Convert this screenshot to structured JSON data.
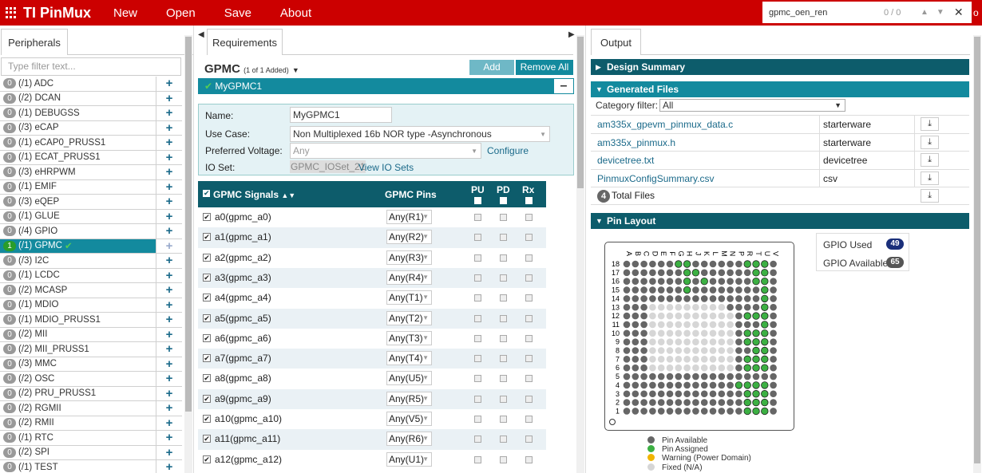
{
  "app": {
    "title": "TI PinMux",
    "menu": [
      "New",
      "Open",
      "Save",
      "About"
    ],
    "find_text": "gpmc_oen_ren",
    "find_count": "0 / 0",
    "cut_text": "o"
  },
  "left": {
    "tab": "Peripherals",
    "filter_placeholder": "Type filter text...",
    "items": [
      {
        "count": "0",
        "label": "(/1) ADC"
      },
      {
        "count": "0",
        "label": "(/2) DCAN"
      },
      {
        "count": "0",
        "label": "(/1) DEBUGSS"
      },
      {
        "count": "0",
        "label": "(/3) eCAP"
      },
      {
        "count": "0",
        "label": "(/1) eCAP0_PRUSS1"
      },
      {
        "count": "0",
        "label": "(/1) ECAT_PRUSS1"
      },
      {
        "count": "0",
        "label": "(/3) eHRPWM"
      },
      {
        "count": "0",
        "label": "(/1) EMIF"
      },
      {
        "count": "0",
        "label": "(/3) eQEP"
      },
      {
        "count": "0",
        "label": "(/1) GLUE"
      },
      {
        "count": "0",
        "label": "(/4) GPIO"
      },
      {
        "count": "1",
        "label": "(/1) GPMC",
        "active": true
      },
      {
        "count": "0",
        "label": "(/3) I2C"
      },
      {
        "count": "0",
        "label": "(/1) LCDC"
      },
      {
        "count": "0",
        "label": "(/2) MCASP"
      },
      {
        "count": "0",
        "label": "(/1) MDIO"
      },
      {
        "count": "0",
        "label": "(/1) MDIO_PRUSS1"
      },
      {
        "count": "0",
        "label": "(/2) MII"
      },
      {
        "count": "0",
        "label": "(/2) MII_PRUSS1"
      },
      {
        "count": "0",
        "label": "(/3) MMC"
      },
      {
        "count": "0",
        "label": "(/2) OSC"
      },
      {
        "count": "0",
        "label": "(/2) PRU_PRUSS1"
      },
      {
        "count": "0",
        "label": "(/2) RGMII"
      },
      {
        "count": "0",
        "label": "(/2) RMII"
      },
      {
        "count": "0",
        "label": "(/1) RTC"
      },
      {
        "count": "0",
        "label": "(/2) SPI"
      },
      {
        "count": "0",
        "label": "(/1) TEST"
      }
    ]
  },
  "mid": {
    "tab": "Requirements",
    "title": "GPMC",
    "subtitle": "(1 of 1 Added)",
    "add": "Add",
    "remove_all": "Remove All",
    "instance": "MyGPMC1",
    "name_label": "Name:",
    "name_value": "MyGPMC1",
    "usecase_label": "Use Case:",
    "usecase_value": "Non Multiplexed 16b NOR type -Asynchronous",
    "voltage_label": "Preferred Voltage:",
    "voltage_value": "Any",
    "configure": "Configure",
    "ioset_label": "IO Set:",
    "ioset_value": "GPMC_IOSet_21",
    "view_ioset": "View IO Sets",
    "col_signals": "GPMC Signals",
    "col_pins": "GPMC Pins",
    "col_pu": "PU",
    "col_pd": "PD",
    "col_rx": "Rx",
    "signals": [
      {
        "name": "a0(gpmc_a0)",
        "pin": "Any(R1)"
      },
      {
        "name": "a1(gpmc_a1)",
        "pin": "Any(R2)"
      },
      {
        "name": "a2(gpmc_a2)",
        "pin": "Any(R3)"
      },
      {
        "name": "a3(gpmc_a3)",
        "pin": "Any(R4)"
      },
      {
        "name": "a4(gpmc_a4)",
        "pin": "Any(T1)"
      },
      {
        "name": "a5(gpmc_a5)",
        "pin": "Any(T2)"
      },
      {
        "name": "a6(gpmc_a6)",
        "pin": "Any(T3)"
      },
      {
        "name": "a7(gpmc_a7)",
        "pin": "Any(T4)"
      },
      {
        "name": "a8(gpmc_a8)",
        "pin": "Any(U5)"
      },
      {
        "name": "a9(gpmc_a9)",
        "pin": "Any(R5)"
      },
      {
        "name": "a10(gpmc_a10)",
        "pin": "Any(V5)"
      },
      {
        "name": "a11(gpmc_a11)",
        "pin": "Any(R6)"
      },
      {
        "name": "a12(gpmc_a12)",
        "pin": "Any(U1)"
      }
    ]
  },
  "right": {
    "tab": "Output",
    "design_summary": "Design Summary",
    "generated_files": "Generated Files",
    "category_label": "Category filter:",
    "category_value": "All",
    "files": [
      {
        "name": "am335x_gpevm_pinmux_data.c",
        "category": "starterware"
      },
      {
        "name": "am335x_pinmux.h",
        "category": "starterware"
      },
      {
        "name": "devicetree.txt",
        "category": "devicetree"
      },
      {
        "name": "PinmuxConfigSummary.csv",
        "category": "csv"
      }
    ],
    "total_count": "4",
    "total_label": "Total Files",
    "pin_layout": "Pin Layout",
    "column_letters": [
      "A",
      "B",
      "C",
      "D",
      "E",
      "F",
      "G",
      "H",
      "J",
      "K",
      "L",
      "M",
      "N",
      "P",
      "R",
      "T",
      "U",
      "V"
    ],
    "row_numbers": [
      "18",
      "17",
      "16",
      "15",
      "14",
      "13",
      "12",
      "11",
      "10",
      "9",
      "8",
      "7",
      "6",
      "5",
      "4",
      "3",
      "2",
      "1"
    ],
    "gpio_used_label": "GPIO Used",
    "gpio_used": "49",
    "gpio_avail_label": "GPIO Available",
    "gpio_avail": "65",
    "legend": [
      {
        "label": "Pin Available",
        "color": "#666666"
      },
      {
        "label": "Pin Assigned",
        "color": "#3cb043"
      },
      {
        "label": "Warning (Power Domain)",
        "color": "#f0b400"
      },
      {
        "label": "Fixed (N/A)",
        "color": "#d6d6d6"
      }
    ]
  },
  "colors": {
    "brand": "#cc0000",
    "teal": "#138a9e",
    "teal_dark": "#0d5c6b",
    "available": "#666666",
    "assigned": "#3cb043",
    "fixed": "#d6d6d6"
  }
}
